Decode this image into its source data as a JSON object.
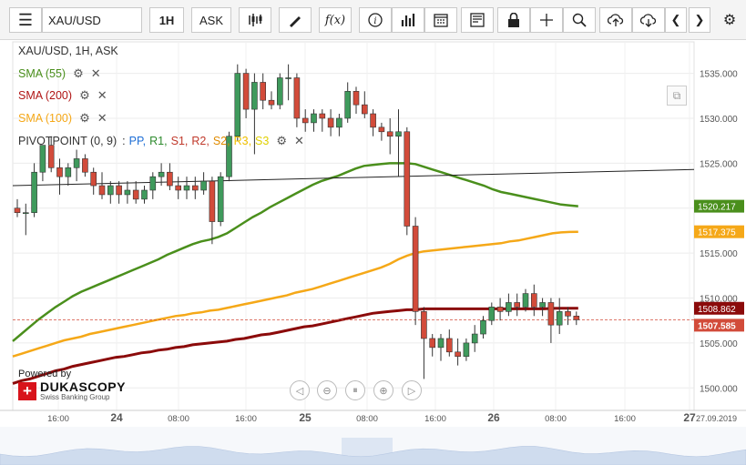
{
  "toolbar": {
    "symbol": "XAU/USD",
    "period": "1H",
    "side": "ASK",
    "fx_label": "f(x)",
    "icons": [
      "menu-icon",
      "candles-icon",
      "draw-icon",
      "function-icon",
      "info-icon",
      "volume-icon",
      "calendar-icon",
      "news-icon",
      "lock-icon",
      "crosshair-icon",
      "zoom-icon",
      "upload-icon",
      "download-icon",
      "prev-icon",
      "next-icon",
      "settings-icon"
    ]
  },
  "legend": {
    "instrument": "XAU/USD, 1H, ASK",
    "sma55": "SMA (55)",
    "sma200": "SMA (200)",
    "sma100": "SMA (100)",
    "pivot_name": "PIVOTPOINT (0, 9)",
    "pivot_sep": ":",
    "pivot_pp": "PP,",
    "pivot_r1": "R1,",
    "pivot_s1": "S1,",
    "pivot_r2": "R2,",
    "pivot_s2": "S2,",
    "pivot_r3": "R3,",
    "pivot_s3": "S3"
  },
  "branding": {
    "powered_by": "Powered by",
    "name": "DUKASCOPY",
    "sub": "Swiss Banking Group"
  },
  "colors": {
    "sma55": "#4a8f1c",
    "sma100": "#f5a818",
    "sma200": "#8b0a0a",
    "bull": "#3f9a5c",
    "bear": "#d24b3a",
    "pp": "#1f6fd6",
    "r1": "#2e8b2e",
    "s1": "#c0392b",
    "r2": "#c0392b",
    "s2": "#e08b00",
    "r3": "#f0c000",
    "s3": "#e0d000",
    "trendline": "#222222",
    "current_price": "#d24b3a"
  },
  "chart_data": {
    "type": "candlestick",
    "instrument": "XAU/USD",
    "timeframe": "1H",
    "side": "ASK",
    "ylim": [
      1497.5,
      1538.5
    ],
    "y_ticks": [
      "1535.000",
      "1530.000",
      "1525.000",
      "1520.000",
      "1515.000",
      "1510.000",
      "1505.000",
      "1500.000"
    ],
    "x_ticks": [
      "16:00",
      "24",
      "08:00",
      "16:00",
      "25",
      "08:00",
      "16:00",
      "26",
      "08:00",
      "16:00",
      "27"
    ],
    "x_end_label": "27.09.2019",
    "price_labels": {
      "sma55": "1520.217",
      "sma100": "1517.375",
      "sma200": "1508.862",
      "current": "1507.585"
    },
    "candles": [
      [
        1520,
        1521,
        1519,
        1519.5
      ],
      [
        1519.5,
        1520.5,
        1517,
        1519.5
      ],
      [
        1519.5,
        1525,
        1519,
        1524
      ],
      [
        1524,
        1527,
        1523,
        1527
      ],
      [
        1527,
        1528,
        1524,
        1524.5
      ],
      [
        1524.5,
        1525.5,
        1521.5,
        1523.5
      ],
      [
        1523.5,
        1525,
        1522.5,
        1524.5
      ],
      [
        1524.5,
        1526.5,
        1523,
        1525.5
      ],
      [
        1525.5,
        1526,
        1523.5,
        1524
      ],
      [
        1524,
        1524.5,
        1521.5,
        1522.5
      ],
      [
        1522.5,
        1524,
        1521,
        1521.5
      ],
      [
        1521.5,
        1523,
        1520.5,
        1522.5
      ],
      [
        1522.5,
        1523,
        1520.5,
        1521.5
      ],
      [
        1521.5,
        1523,
        1520.5,
        1522
      ],
      [
        1522,
        1523,
        1520.5,
        1521
      ],
      [
        1521,
        1522.5,
        1520.5,
        1522
      ],
      [
        1522,
        1524,
        1521,
        1523.5
      ],
      [
        1523.5,
        1525,
        1522.5,
        1524
      ],
      [
        1524,
        1525,
        1522,
        1522.5
      ],
      [
        1522.5,
        1523.5,
        1521,
        1522
      ],
      [
        1522,
        1523.5,
        1521,
        1522.5
      ],
      [
        1522.5,
        1523.5,
        1521,
        1522
      ],
      [
        1522,
        1524,
        1521.5,
        1523
      ],
      [
        1523,
        1523.5,
        1516,
        1518.5
      ],
      [
        1518.5,
        1524,
        1518,
        1523.5
      ],
      [
        1523.5,
        1528.5,
        1523,
        1528
      ],
      [
        1528,
        1536,
        1527.5,
        1535
      ],
      [
        1535,
        1535.5,
        1530,
        1531
      ],
      [
        1531,
        1535,
        1526,
        1534
      ],
      [
        1534,
        1535,
        1531,
        1532
      ],
      [
        1532,
        1533,
        1531,
        1531.5
      ],
      [
        1531.5,
        1535,
        1531,
        1534.5
      ],
      [
        1534.5,
        1536,
        1532,
        1534.5
      ],
      [
        1534.5,
        1535,
        1529,
        1530
      ],
      [
        1530,
        1531,
        1528.5,
        1529.5
      ],
      [
        1529.5,
        1531,
        1528.5,
        1530.5
      ],
      [
        1530.5,
        1531,
        1528.5,
        1530
      ],
      [
        1530,
        1531,
        1528,
        1529
      ],
      [
        1529,
        1530.5,
        1528,
        1530
      ],
      [
        1530,
        1534,
        1529.5,
        1533
      ],
      [
        1533,
        1533.5,
        1530.5,
        1531.5
      ],
      [
        1531.5,
        1533,
        1530,
        1530.5
      ],
      [
        1530.5,
        1531,
        1528,
        1529
      ],
      [
        1529,
        1529.5,
        1527.5,
        1528.5
      ],
      [
        1528.5,
        1530,
        1526,
        1528
      ],
      [
        1528,
        1531,
        1523.5,
        1528.5
      ],
      [
        1528.5,
        1529,
        1517,
        1518
      ],
      [
        1518,
        1519,
        1507,
        1508.5
      ],
      [
        1508.5,
        1509,
        1501,
        1505.5
      ],
      [
        1505.5,
        1506,
        1503.5,
        1504.5
      ],
      [
        1504.5,
        1506,
        1503,
        1505.5
      ],
      [
        1505.5,
        1506.5,
        1503.5,
        1504
      ],
      [
        1504,
        1505.5,
        1502.5,
        1503.5
      ],
      [
        1503.5,
        1505.5,
        1503,
        1505
      ],
      [
        1505,
        1507,
        1504,
        1506
      ],
      [
        1506,
        1508,
        1505.5,
        1507.5
      ],
      [
        1507.5,
        1509.5,
        1507,
        1509
      ],
      [
        1509,
        1510,
        1507.5,
        1508.5
      ],
      [
        1508.5,
        1510.5,
        1508,
        1509.5
      ],
      [
        1509.5,
        1510.5,
        1508,
        1509
      ],
      [
        1509,
        1511,
        1508.5,
        1510.5
      ],
      [
        1510.5,
        1511.5,
        1508,
        1509
      ],
      [
        1509,
        1510,
        1508,
        1509.5
      ],
      [
        1509.5,
        1510,
        1505,
        1507
      ],
      [
        1507,
        1510,
        1506,
        1508.5
      ],
      [
        1508.5,
        1509,
        1507,
        1508
      ],
      [
        1508,
        1508.5,
        1507,
        1507.585
      ]
    ],
    "series": [
      {
        "name": "SMA (55)",
        "values": [
          1505.2,
          1506.0,
          1506.8,
          1507.6,
          1508.3,
          1509.0,
          1509.6,
          1510.2,
          1510.7,
          1511.1,
          1511.5,
          1511.9,
          1512.3,
          1512.7,
          1513.1,
          1513.5,
          1513.9,
          1514.3,
          1514.8,
          1515.2,
          1515.6,
          1516.0,
          1516.3,
          1516.5,
          1516.8,
          1517.2,
          1517.8,
          1518.4,
          1519.0,
          1519.5,
          1520.1,
          1520.6,
          1521.1,
          1521.6,
          1522.1,
          1522.6,
          1523.0,
          1523.3,
          1523.6,
          1524.0,
          1524.4,
          1524.7,
          1524.8,
          1524.9,
          1525.0,
          1525.0,
          1525.0,
          1524.9,
          1524.6,
          1524.3,
          1524.0,
          1523.7,
          1523.4,
          1523.1,
          1522.8,
          1522.5,
          1522.1,
          1521.8,
          1521.6,
          1521.4,
          1521.2,
          1521.0,
          1520.8,
          1520.6,
          1520.4,
          1520.3,
          1520.217
        ]
      },
      {
        "name": "SMA (100)",
        "values": [
          1503.5,
          1503.8,
          1504.1,
          1504.4,
          1504.7,
          1505.0,
          1505.3,
          1505.5,
          1505.7,
          1506.0,
          1506.2,
          1506.4,
          1506.6,
          1506.8,
          1507.0,
          1507.2,
          1507.4,
          1507.6,
          1507.8,
          1508.0,
          1508.1,
          1508.3,
          1508.4,
          1508.6,
          1508.7,
          1508.9,
          1509.1,
          1509.3,
          1509.5,
          1509.7,
          1509.9,
          1510.1,
          1510.3,
          1510.6,
          1510.8,
          1511.0,
          1511.3,
          1511.6,
          1511.9,
          1512.2,
          1512.5,
          1512.8,
          1513.1,
          1513.4,
          1513.8,
          1514.3,
          1514.7,
          1515.0,
          1515.2,
          1515.3,
          1515.4,
          1515.5,
          1515.6,
          1515.7,
          1515.8,
          1515.9,
          1516.0,
          1516.1,
          1516.3,
          1516.4,
          1516.6,
          1516.8,
          1517.0,
          1517.2,
          1517.3,
          1517.35,
          1517.375
        ]
      },
      {
        "name": "SMA (200)",
        "values": [
          1500.5,
          1500.8,
          1501.0,
          1501.3,
          1501.6,
          1501.9,
          1502.1,
          1502.4,
          1502.6,
          1502.8,
          1503.0,
          1503.2,
          1503.4,
          1503.5,
          1503.7,
          1503.9,
          1504.0,
          1504.2,
          1504.3,
          1504.5,
          1504.6,
          1504.8,
          1504.9,
          1505.0,
          1505.1,
          1505.2,
          1505.4,
          1505.5,
          1505.7,
          1505.9,
          1506.0,
          1506.2,
          1506.4,
          1506.6,
          1506.8,
          1506.9,
          1507.1,
          1507.3,
          1507.5,
          1507.7,
          1507.9,
          1508.1,
          1508.3,
          1508.4,
          1508.5,
          1508.6,
          1508.7,
          1508.7,
          1508.8,
          1508.8,
          1508.8,
          1508.8,
          1508.8,
          1508.8,
          1508.8,
          1508.8,
          1508.8,
          1508.8,
          1508.8,
          1508.8,
          1508.8,
          1508.8,
          1508.8,
          1508.85,
          1508.86,
          1508.86,
          1508.862
        ]
      },
      {
        "name": "trendline",
        "values": [
          1522.5,
          1524.3
        ]
      }
    ],
    "current_price": 1507.585,
    "grid": true
  }
}
